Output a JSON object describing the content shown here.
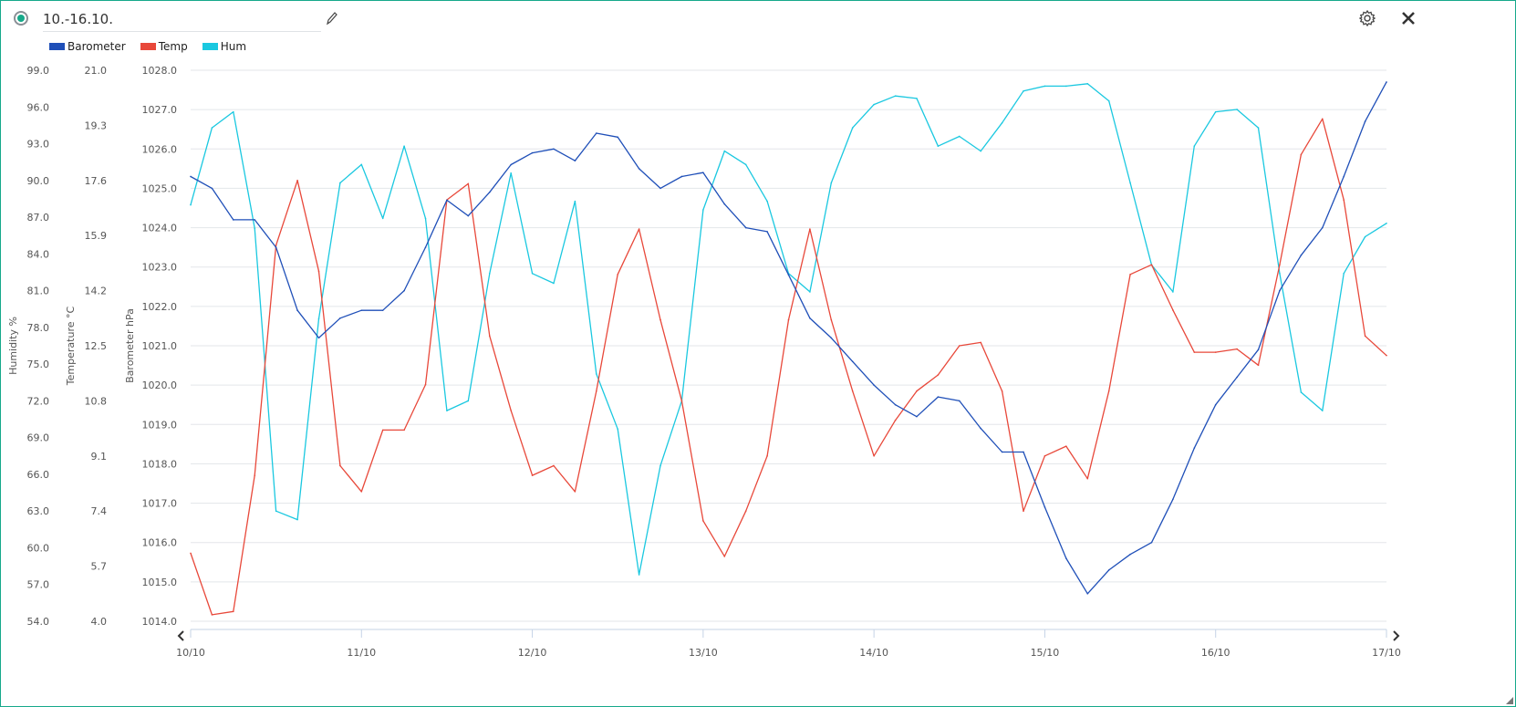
{
  "header": {
    "title": "10.-16.10.",
    "edit_icon": "pencil-icon",
    "settings_icon": "gear-icon",
    "close_icon": "close-icon"
  },
  "colors": {
    "accent": "#16a98a",
    "barometer": "#1f4fb8",
    "temp": "#e8483a",
    "hum": "#1ac8e0",
    "grid": "#e3e6ea"
  },
  "chart_data": {
    "type": "line",
    "title": "10.-16.10.",
    "legend": [
      "Barometer",
      "Temp",
      "Hum"
    ],
    "legend_position": "top-left",
    "grid": true,
    "x_ticks": [
      "10/10",
      "11/10",
      "12/10",
      "13/10",
      "14/10",
      "15/10",
      "16/10",
      "17/10"
    ],
    "x_range_days": [
      0,
      7
    ],
    "x_step_hours": 3,
    "axes": [
      {
        "id": "hum",
        "label": "Humidity %",
        "range": [
          54,
          99
        ],
        "ticks": [
          "99.0",
          "96.0",
          "93.0",
          "90.0",
          "87.0",
          "84.0",
          "81.0",
          "78.0",
          "75.0",
          "72.0",
          "69.0",
          "66.0",
          "63.0",
          "60.0",
          "57.0",
          "54.0"
        ]
      },
      {
        "id": "temp",
        "label": "Temperature °C",
        "range": [
          4,
          21
        ],
        "ticks": [
          "21.0",
          "19.3",
          "17.6",
          "15.9",
          "14.2",
          "12.5",
          "10.8",
          "9.1",
          "7.4",
          "5.7",
          "4.0"
        ]
      },
      {
        "id": "baro",
        "label": "Barometer hPa",
        "range": [
          1014,
          1028
        ],
        "ticks": [
          "1028.0",
          "1027.0",
          "1026.0",
          "1025.0",
          "1024.0",
          "1023.0",
          "1022.0",
          "1021.0",
          "1020.0",
          "1019.0",
          "1018.0",
          "1017.0",
          "1016.0",
          "1015.0",
          "1014.0"
        ]
      }
    ],
    "series": [
      {
        "name": "Barometer",
        "axis": "baro",
        "values": [
          1025.3,
          1025.0,
          1024.2,
          1024.2,
          1023.5,
          1021.9,
          1021.2,
          1021.7,
          1021.9,
          1021.9,
          1022.4,
          1023.5,
          1024.7,
          1024.3,
          1024.9,
          1025.6,
          1025.9,
          1026.0,
          1025.7,
          1026.4,
          1026.3,
          1025.5,
          1025.0,
          1025.3,
          1025.4,
          1024.6,
          1024.0,
          1023.9,
          1022.8,
          1021.7,
          1021.2,
          1020.6,
          1020.0,
          1019.5,
          1019.2,
          1019.7,
          1019.6,
          1018.9,
          1018.3,
          1018.3,
          1016.9,
          1015.6,
          1014.7,
          1015.3,
          1015.7,
          1016.0,
          1017.1,
          1018.4,
          1019.5,
          1020.2,
          1020.9,
          1022.4,
          1023.3,
          1024.0,
          1025.3,
          1026.7,
          1027.7
        ]
      },
      {
        "name": "Temp",
        "axis": "temp",
        "values": [
          6.1,
          4.2,
          4.3,
          8.5,
          15.6,
          17.6,
          14.8,
          8.8,
          8.0,
          9.9,
          9.9,
          11.3,
          17.0,
          17.5,
          12.8,
          10.5,
          8.5,
          8.8,
          8.0,
          11.1,
          14.7,
          16.1,
          13.3,
          10.8,
          7.1,
          6.0,
          7.4,
          9.1,
          13.3,
          16.1,
          13.3,
          11.1,
          9.1,
          10.2,
          11.1,
          11.6,
          12.5,
          12.6,
          11.1,
          7.4,
          9.1,
          9.4,
          8.4,
          11.1,
          14.7,
          15.0,
          13.6,
          12.3,
          12.3,
          12.4,
          11.9,
          15.0,
          18.4,
          19.5,
          17.0,
          12.8,
          12.2
        ]
      },
      {
        "name": "Hum",
        "axis": "hum",
        "values": [
          88.0,
          94.3,
          95.6,
          86.1,
          63.0,
          62.3,
          78.7,
          89.8,
          91.3,
          86.9,
          92.8,
          86.9,
          71.2,
          72.0,
          82.4,
          90.6,
          82.4,
          81.6,
          88.3,
          74.2,
          69.7,
          57.8,
          66.7,
          72.0,
          87.6,
          92.4,
          91.3,
          88.3,
          82.4,
          80.9,
          89.8,
          94.3,
          96.2,
          96.9,
          96.7,
          92.8,
          93.6,
          92.4,
          94.7,
          97.3,
          97.7,
          97.7,
          97.9,
          96.5,
          89.8,
          83.1,
          80.9,
          92.8,
          95.6,
          95.8,
          94.3,
          82.4,
          72.7,
          71.2,
          82.4,
          85.4,
          86.5
        ]
      }
    ]
  }
}
